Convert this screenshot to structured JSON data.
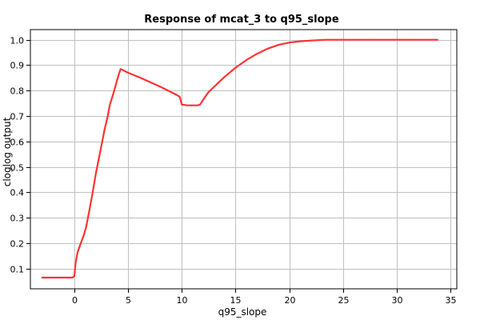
{
  "chart_data": {
    "type": "line",
    "title": "Response of mcat_3 to q95_slope",
    "xlabel": "q95_slope",
    "ylabel": "cloglog output",
    "xlim": [
      -4.1,
      35.6
    ],
    "ylim": [
      0.02,
      1.04
    ],
    "x_ticks": [
      0,
      5,
      10,
      15,
      20,
      25,
      30,
      35
    ],
    "y_ticks": [
      0.1,
      0.2,
      0.3,
      0.4,
      0.5,
      0.6,
      0.7,
      0.8,
      0.9,
      1.0
    ],
    "x_tick_labels": [
      "0",
      "5",
      "10",
      "15",
      "20",
      "25",
      "30",
      "35"
    ],
    "y_tick_labels": [
      "0.1",
      "0.2",
      "0.3",
      "0.4",
      "0.5",
      "0.6",
      "0.7",
      "0.8",
      "0.9",
      "1.0"
    ],
    "grid": true,
    "legend": "none",
    "line_color": "#ff3333",
    "grid_color": "#c0c0c0",
    "series": [
      {
        "x": [
          -3.0,
          -2.0,
          -1.0,
          -0.2,
          0.0,
          0.1,
          0.3,
          0.6,
          0.9,
          1.1,
          1.4,
          1.7,
          2.0,
          2.4,
          2.8,
          3.1,
          3.3,
          3.6,
          3.9,
          4.1,
          4.3,
          5.0,
          6.0,
          7.0,
          8.0,
          9.0,
          9.5,
          9.8,
          10.0,
          10.5,
          11.0,
          11.5,
          11.7,
          12.0,
          12.5,
          13.0,
          13.5,
          14.0,
          15.0,
          16.0,
          17.0,
          18.0,
          19.0,
          20.0,
          21.0,
          22.0,
          23.0,
          23.5,
          25.0,
          28.0,
          31.0,
          33.8
        ],
        "y": [
          0.064,
          0.064,
          0.064,
          0.064,
          0.07,
          0.12,
          0.165,
          0.2,
          0.235,
          0.265,
          0.33,
          0.4,
          0.475,
          0.56,
          0.645,
          0.7,
          0.745,
          0.785,
          0.83,
          0.86,
          0.885,
          0.87,
          0.853,
          0.834,
          0.815,
          0.794,
          0.783,
          0.776,
          0.745,
          0.742,
          0.742,
          0.742,
          0.745,
          0.765,
          0.795,
          0.815,
          0.835,
          0.855,
          0.89,
          0.92,
          0.945,
          0.965,
          0.98,
          0.989,
          0.994,
          0.997,
          0.999,
          1.0,
          1.0,
          1.0,
          1.0,
          1.0
        ]
      }
    ]
  }
}
